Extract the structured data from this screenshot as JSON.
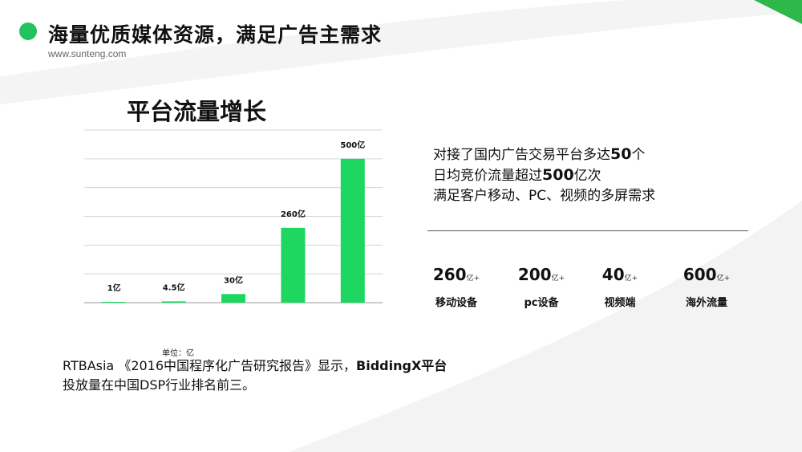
{
  "header": {
    "title": "海量优质媒体资源，满足广告主需求",
    "url": "www.sunteng.com"
  },
  "colors": {
    "accent": "#22c35e",
    "bar": "#1ed760",
    "corner": "#2eb84b"
  },
  "chart_data": {
    "type": "bar",
    "title": "平台流量增长",
    "categories": [
      "",
      "",
      "",
      "",
      ""
    ],
    "values": [
      1,
      4.5,
      30,
      260,
      500
    ],
    "data_labels": [
      "1亿",
      "4.5亿",
      "30亿",
      "260亿",
      "500亿"
    ],
    "unit_note": "单位：亿",
    "ylim": [
      0,
      600
    ],
    "grid": true
  },
  "description": {
    "line1_pre": "对接了国内广告交易平台多达",
    "line1_bold": "50",
    "line1_post": "个",
    "line2_pre": "日均竞价流量超过",
    "line2_bold": "500",
    "line2_post": "亿次",
    "line3": "满足客户移动、PC、视频的多屏需求"
  },
  "stats": [
    {
      "value": "260",
      "unit": "亿+",
      "label": "移动设备"
    },
    {
      "value": "200",
      "unit": "亿+",
      "label": "pc设备"
    },
    {
      "value": "40",
      "unit": "亿+",
      "label": "视频端"
    },
    {
      "value": "600",
      "unit": "亿+",
      "label": "海外流量"
    }
  ],
  "footnote": {
    "line1_pre": "RTBAsia 《2016中国程序化广告研究报告》显示，",
    "line1_bold": "BiddingX平台",
    "line2": "投放量在中国DSP行业排名前三。"
  }
}
